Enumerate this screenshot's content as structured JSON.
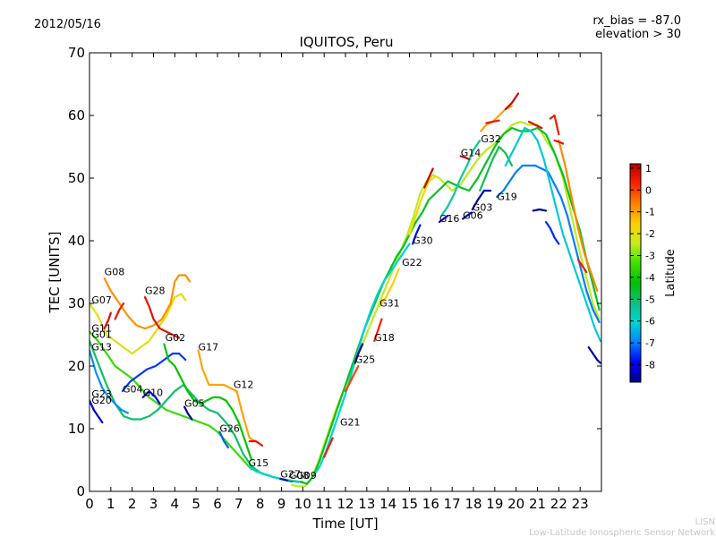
{
  "header": {
    "date": "2012/05/16",
    "rx_bias": "rx_bias = -87.0",
    "elevation": "elevation > 30"
  },
  "footer": {
    "line1": "LISN",
    "line2": "Low-Latitude Ionospheric Sensor Network"
  },
  "chart_data": {
    "type": "line",
    "title": "IQUITOS, Peru",
    "xlabel": "Time [UT]",
    "ylabel": "TEC [UNITS]",
    "xlim": [
      0,
      24
    ],
    "ylim": [
      0,
      70
    ],
    "xticks": [
      "0",
      "1",
      "2",
      "3",
      "4",
      "5",
      "6",
      "7",
      "8",
      "9",
      "10",
      "11",
      "12",
      "13",
      "14",
      "15",
      "16",
      "17",
      "18",
      "19",
      "20",
      "21",
      "22",
      "23"
    ],
    "yticks": [
      "0",
      "10",
      "20",
      "30",
      "40",
      "50",
      "60",
      "70"
    ],
    "grid": false,
    "colorbar": {
      "label": "Latitude",
      "min": -8.8,
      "max": 1.2,
      "ticks": [
        "1",
        "0",
        "-1",
        "-2",
        "-3",
        "-4",
        "-5",
        "-6",
        "-7",
        "-8"
      ],
      "colors": [
        "#00007f",
        "#0000ff",
        "#0080ff",
        "#00d4d4",
        "#10c080",
        "#00c000",
        "#40e000",
        "#c8ec20",
        "#ffd000",
        "#ff8000",
        "#ff2000",
        "#b00000"
      ]
    },
    "satellite_labels": [
      {
        "name": "G08",
        "x": 0.7,
        "y": 34.5
      },
      {
        "name": "G07",
        "x": 0.1,
        "y": 30.0
      },
      {
        "name": "G11",
        "x": 0.1,
        "y": 25.5
      },
      {
        "name": "G01",
        "x": 0.1,
        "y": 24.5
      },
      {
        "name": "G13",
        "x": 0.1,
        "y": 22.5
      },
      {
        "name": "G23",
        "x": 0.1,
        "y": 15.0
      },
      {
        "name": "G20",
        "x": 0.1,
        "y": 14.0
      },
      {
        "name": "G04",
        "x": 1.55,
        "y": 15.8
      },
      {
        "name": "G10",
        "x": 2.5,
        "y": 15.2
      },
      {
        "name": "G28",
        "x": 2.6,
        "y": 31.5
      },
      {
        "name": "G02",
        "x": 3.55,
        "y": 24.0
      },
      {
        "name": "G05",
        "x": 4.45,
        "y": 13.5
      },
      {
        "name": "G17",
        "x": 5.1,
        "y": 22.5
      },
      {
        "name": "G12",
        "x": 6.75,
        "y": 16.5
      },
      {
        "name": "G26",
        "x": 6.1,
        "y": 9.5
      },
      {
        "name": "G15",
        "x": 7.45,
        "y": 4.0
      },
      {
        "name": "G27",
        "x": 8.95,
        "y": 2.2
      },
      {
        "name": "G08",
        "x": 9.35,
        "y": 2.0
      },
      {
        "name": "G09",
        "x": 9.7,
        "y": 2.0
      },
      {
        "name": "G21",
        "x": 11.75,
        "y": 10.5
      },
      {
        "name": "G25",
        "x": 12.45,
        "y": 20.5
      },
      {
        "name": "G18",
        "x": 13.35,
        "y": 24.0
      },
      {
        "name": "G31",
        "x": 13.6,
        "y": 29.5
      },
      {
        "name": "G22",
        "x": 14.65,
        "y": 36.0
      },
      {
        "name": "G30",
        "x": 15.15,
        "y": 39.5
      },
      {
        "name": "G16",
        "x": 16.4,
        "y": 43.0
      },
      {
        "name": "G06",
        "x": 17.5,
        "y": 43.5
      },
      {
        "name": "G03",
        "x": 17.95,
        "y": 44.8
      },
      {
        "name": "G14",
        "x": 17.4,
        "y": 53.5
      },
      {
        "name": "G32",
        "x": 18.35,
        "y": 55.7
      },
      {
        "name": "G19",
        "x": 19.1,
        "y": 46.5
      }
    ],
    "series": [
      {
        "lat": -2.0,
        "x": [
          0,
          0.4,
          0.8,
          1.2,
          1.6,
          2.0,
          2.4,
          2.8,
          3.2,
          3.6,
          4.0,
          4.3,
          4.5
        ],
        "y": [
          30,
          28,
          25,
          24,
          23,
          22,
          23,
          24,
          26,
          28,
          31,
          31.5,
          30.5
        ]
      },
      {
        "lat": -0.8,
        "x": [
          0.7,
          1.0,
          1.4,
          1.8,
          2.2,
          2.6,
          3.0,
          3.4,
          3.8,
          4.0,
          4.2,
          4.5,
          4.7
        ],
        "y": [
          34,
          32,
          30,
          28,
          26.5,
          26,
          26.5,
          27.5,
          30,
          33.5,
          34.5,
          34.5,
          33.5
        ]
      },
      {
        "lat": 0.7,
        "x": [
          0.7,
          0.9,
          1.0
        ],
        "y": [
          26,
          27.5,
          28.5
        ]
      },
      {
        "lat": 0.5,
        "x": [
          1.2,
          1.4,
          1.6
        ],
        "y": [
          27.5,
          29,
          30
        ]
      },
      {
        "lat": -3.5,
        "x": [
          0,
          0.4,
          0.8,
          1.2,
          1.6,
          2.0,
          2.4,
          2.8,
          3.2,
          3.6,
          4.0,
          4.4,
          4.8,
          5.2,
          5.6,
          6.0,
          6.4,
          6.8,
          7.2,
          7.6
        ],
        "y": [
          25.5,
          24,
          22,
          20,
          19,
          18,
          16.5,
          15,
          14,
          13,
          12.5,
          12,
          11.5,
          11,
          10.5,
          9.5,
          8,
          6.5,
          5,
          3.5
        ]
      },
      {
        "lat": -5.0,
        "x": [
          0,
          0.4,
          0.8,
          1.2,
          1.6,
          2.0,
          2.4,
          2.8,
          3.2,
          3.6,
          4.0,
          4.4,
          4.8,
          5.2,
          5.6,
          6.0,
          6.4,
          6.8,
          7.2,
          7.6,
          8.0,
          8.6,
          9.2,
          9.8
        ],
        "y": [
          24,
          20.5,
          17,
          14,
          12,
          11.5,
          11.5,
          12,
          13,
          14.5,
          16,
          17,
          15.5,
          14,
          13,
          12.5,
          11,
          9,
          6,
          4,
          3,
          2.3,
          1.8,
          1.5
        ]
      },
      {
        "lat": -6.8,
        "x": [
          0,
          0.3,
          0.6,
          0.9,
          1.2,
          1.5,
          1.8
        ],
        "y": [
          22.5,
          19,
          16.5,
          15,
          14,
          13,
          12.5
        ]
      },
      {
        "lat": -8.3,
        "x": [
          0,
          0.2,
          0.4,
          0.6
        ],
        "y": [
          14.5,
          13,
          12,
          11
        ]
      },
      {
        "lat": -7.5,
        "x": [
          1.55,
          1.9,
          2.3,
          2.7,
          3.1,
          3.5,
          3.9,
          4.2,
          4.5
        ],
        "y": [
          16,
          17.5,
          18.5,
          19.5,
          20,
          21,
          22,
          22,
          21
        ]
      },
      {
        "lat": -8.0,
        "x": [
          2.5,
          2.8,
          3.1,
          3.3
        ],
        "y": [
          15,
          16,
          15,
          14
        ]
      },
      {
        "lat": 0.6,
        "x": [
          2.6,
          2.8,
          3.0,
          3.3,
          3.6,
          3.9,
          4.2
        ],
        "y": [
          31,
          29.5,
          27.5,
          26,
          25.5,
          25,
          24.5
        ]
      },
      {
        "lat": -4.2,
        "x": [
          3.5,
          3.7,
          4.0,
          4.3,
          4.6,
          4.9,
          5.2,
          5.5,
          5.8,
          6.1,
          6.4,
          6.7,
          7.0,
          7.3,
          7.6
        ],
        "y": [
          23.5,
          21,
          20,
          18,
          16,
          14.5,
          14,
          14.5,
          15,
          15,
          14.5,
          13,
          11,
          8,
          5
        ]
      },
      {
        "lat": -8.5,
        "x": [
          4.45,
          4.6,
          4.8
        ],
        "y": [
          13.5,
          12.5,
          11.5
        ]
      },
      {
        "lat": -1.0,
        "x": [
          5.1,
          5.3,
          5.6,
          6.0,
          6.3,
          6.6,
          6.9,
          7.2,
          7.5,
          7.8
        ],
        "y": [
          22.5,
          19.5,
          17,
          17,
          17,
          16.5,
          16,
          12,
          8.5,
          8
        ]
      },
      {
        "lat": 0.6,
        "x": [
          7.5,
          7.8,
          8.1
        ],
        "y": [
          8,
          8,
          7.3
        ]
      },
      {
        "lat": -7.2,
        "x": [
          6.1,
          6.3,
          6.5
        ],
        "y": [
          9.5,
          8,
          7
        ]
      },
      {
        "lat": -6.0,
        "x": [
          7.45,
          7.8,
          8.2,
          8.6,
          9.0,
          9.4,
          9.8
        ],
        "y": [
          4,
          3.2,
          2.7,
          2.3,
          2,
          1.7,
          1.5
        ]
      },
      {
        "lat": -8.5,
        "x": [
          8.95,
          9.2,
          9.5
        ],
        "y": [
          2,
          1.8,
          1.6
        ]
      },
      {
        "lat": -5.5,
        "x": [
          9.35,
          9.7,
          10.0
        ],
        "y": [
          1.8,
          1.6,
          1.5
        ]
      },
      {
        "lat": -2.5,
        "x": [
          9.5,
          9.8,
          10.1,
          10.4,
          10.7,
          11.0,
          11.3,
          11.6,
          11.9,
          12.2,
          12.5,
          12.8,
          13.1,
          13.4,
          13.7,
          14.0,
          14.3,
          14.6,
          14.9,
          15.2,
          15.5,
          15.8,
          16.1,
          16.4,
          16.7,
          17.0,
          17.4,
          17.8,
          18.2,
          18.6,
          19.0,
          19.4,
          19.8,
          20.2,
          20.6,
          21.0,
          21.4,
          21.8,
          22.2,
          22.6,
          23.0,
          23.3,
          23.6,
          23.9
        ],
        "y": [
          1,
          0.8,
          0.8,
          2,
          4.5,
          7.5,
          10.5,
          13.5,
          16,
          18.5,
          21,
          23.5,
          26,
          28.5,
          31,
          33.5,
          36,
          38.5,
          41,
          44,
          47.5,
          49.5,
          50.5,
          50,
          49,
          48,
          49,
          51,
          53,
          54.5,
          55.5,
          57,
          58.5,
          59,
          58.5,
          58.5,
          56,
          54,
          50,
          44,
          38,
          34,
          30,
          27.5
        ]
      },
      {
        "lat": -4.5,
        "x": [
          9.9,
          10.2,
          10.5,
          10.8,
          11.1,
          11.4,
          11.7,
          12.0,
          12.3,
          12.6,
          12.9,
          13.2,
          13.5,
          13.8,
          14.1,
          14.4,
          14.7,
          15.0,
          15.3,
          15.6,
          15.9,
          16.2,
          16.5,
          16.8,
          17.1,
          17.4,
          17.8,
          18.2,
          18.6,
          19.0,
          19.4,
          19.8,
          20.2,
          20.6,
          21.0,
          21.4,
          21.8,
          22.2,
          22.6,
          23.0,
          23.3,
          23.6,
          23.9
        ],
        "y": [
          1.5,
          1.2,
          2.5,
          5,
          8,
          11,
          14,
          17,
          20,
          23,
          26,
          28.5,
          31,
          33.5,
          35.5,
          37.5,
          39,
          41,
          43,
          44.5,
          46.5,
          47.5,
          48.5,
          49.5,
          49,
          48.5,
          48,
          50,
          52.5,
          55,
          57,
          58,
          57.5,
          57.5,
          58,
          57,
          54,
          50.5,
          46,
          41.5,
          37,
          33,
          29
        ]
      },
      {
        "lat": -6.0,
        "x": [
          10.5,
          10.8,
          11.1,
          11.4,
          11.7,
          12.0,
          12.3,
          12.6,
          12.9,
          13.2,
          13.5,
          13.8,
          14.1,
          14.4,
          14.7,
          15.0
        ],
        "y": [
          2.5,
          4,
          6.5,
          9.5,
          12.5,
          15.5,
          19,
          22.5,
          26,
          29,
          31.5,
          33.5,
          35,
          36.5,
          38,
          39.5
        ]
      },
      {
        "lat": 0.4,
        "x": [
          11.0,
          11.2,
          11.4
        ],
        "y": [
          5.5,
          7,
          8.5
        ]
      },
      {
        "lat": 0.0,
        "x": [
          12.0,
          12.3,
          12.6
        ],
        "y": [
          16,
          18,
          20
        ]
      },
      {
        "lat": -8.6,
        "x": [
          12.45,
          12.6,
          12.8
        ],
        "y": [
          20.5,
          22,
          23.5
        ]
      },
      {
        "lat": 0.3,
        "x": [
          13.35,
          13.5,
          13.7
        ],
        "y": [
          24,
          25.5,
          27.5
        ]
      },
      {
        "lat": -1.5,
        "x": [
          13.6,
          13.9,
          14.2,
          14.5
        ],
        "y": [
          29.5,
          31,
          33,
          35.5
        ]
      },
      {
        "lat": -7.8,
        "x": [
          15.15,
          15.3,
          15.5
        ],
        "y": [
          39.5,
          41,
          42.5
        ]
      },
      {
        "lat": -1.8,
        "x": [
          15.0,
          15.3,
          15.6,
          15.9,
          16.2
        ],
        "y": [
          41,
          44,
          47,
          49.5,
          50.2
        ]
      },
      {
        "lat": -8.0,
        "x": [
          16.4,
          16.6,
          16.8
        ],
        "y": [
          43,
          43.5,
          44
        ]
      },
      {
        "lat": 0.9,
        "x": [
          15.7,
          15.9,
          16.1
        ],
        "y": [
          48.5,
          50,
          51.5
        ]
      },
      {
        "lat": -5.5,
        "x": [
          16.5,
          16.8,
          17.1,
          17.4,
          17.7,
          18.0,
          18.3
        ],
        "y": [
          44,
          45.5,
          47.5,
          50,
          52,
          54.5,
          56
        ]
      },
      {
        "lat": -8.4,
        "x": [
          17.5,
          17.7,
          17.9
        ],
        "y": [
          43.5,
          44,
          44.5
        ]
      },
      {
        "lat": -8.5,
        "x": [
          17.95,
          18.2,
          18.5,
          18.8
        ],
        "y": [
          45,
          46.5,
          48,
          48
        ]
      },
      {
        "lat": 1.0,
        "x": [
          17.4,
          17.6,
          17.8
        ],
        "y": [
          53.5,
          53.3,
          53
        ]
      },
      {
        "lat": -1.0,
        "x": [
          18.35,
          18.6,
          18.9,
          19.2,
          19.5,
          19.8
        ],
        "y": [
          57.5,
          58.5,
          59,
          60,
          61,
          61.5
        ]
      },
      {
        "lat": 0.5,
        "x": [
          18.6,
          18.9,
          19.2
        ],
        "y": [
          58.8,
          59,
          59.2
        ]
      },
      {
        "lat": 0.9,
        "x": [
          19.5,
          19.8,
          20.1
        ],
        "y": [
          61,
          62,
          63.5
        ]
      },
      {
        "lat": -4.8,
        "x": [
          18.3,
          18.6,
          18.9,
          19.2,
          19.5,
          19.8
        ],
        "y": [
          48,
          50.5,
          53,
          55,
          54,
          52
        ]
      },
      {
        "lat": -7.0,
        "x": [
          19.1,
          19.4,
          19.7,
          20.0,
          20.3,
          20.6,
          20.9,
          21.2,
          21.5,
          21.8,
          22.1,
          22.4,
          22.7,
          23.0,
          23.3,
          23.6,
          23.9
        ],
        "y": [
          47,
          48,
          49.5,
          51,
          52,
          52,
          52,
          51.5,
          51,
          49,
          47,
          44,
          40,
          36,
          32,
          29,
          27
        ]
      },
      {
        "lat": -6.2,
        "x": [
          19.5,
          19.8,
          20.1,
          20.4,
          20.7,
          21.0,
          21.3,
          21.6,
          21.9,
          22.2,
          22.5,
          22.8,
          23.1,
          23.4,
          23.7,
          23.95
        ],
        "y": [
          52,
          54,
          56,
          58,
          57.5,
          56,
          53,
          49,
          45,
          41,
          38,
          35,
          32,
          29,
          26,
          24
        ]
      },
      {
        "lat": -8.6,
        "x": [
          20.8,
          21.1,
          21.4
        ],
        "y": [
          44.8,
          45,
          44.8
        ]
      },
      {
        "lat": -7.6,
        "x": [
          21.4,
          21.6,
          21.8,
          22.0
        ],
        "y": [
          43,
          42,
          40.5,
          39.5
        ]
      },
      {
        "lat": 0.5,
        "x": [
          21.6,
          21.8,
          22.0
        ],
        "y": [
          59.5,
          60,
          57
        ]
      },
      {
        "lat": -0.7,
        "x": [
          22.0,
          22.3,
          22.6,
          22.9,
          23.2,
          23.5,
          23.8
        ],
        "y": [
          56,
          52,
          47,
          42,
          38,
          35,
          32
        ]
      },
      {
        "lat": 0.8,
        "x": [
          20.6,
          20.9,
          21.2
        ],
        "y": [
          59,
          58.5,
          58
        ]
      },
      {
        "lat": 0.6,
        "x": [
          21.8,
          22.0,
          22.2
        ],
        "y": [
          56,
          55.8,
          55.5
        ]
      },
      {
        "lat": -8.5,
        "x": [
          23.4,
          23.6,
          23.8,
          23.95
        ],
        "y": [
          23,
          22,
          21,
          20.5
        ]
      },
      {
        "lat": 0.4,
        "x": [
          22.9,
          23.1,
          23.3
        ],
        "y": [
          37,
          36,
          35
        ]
      }
    ]
  }
}
